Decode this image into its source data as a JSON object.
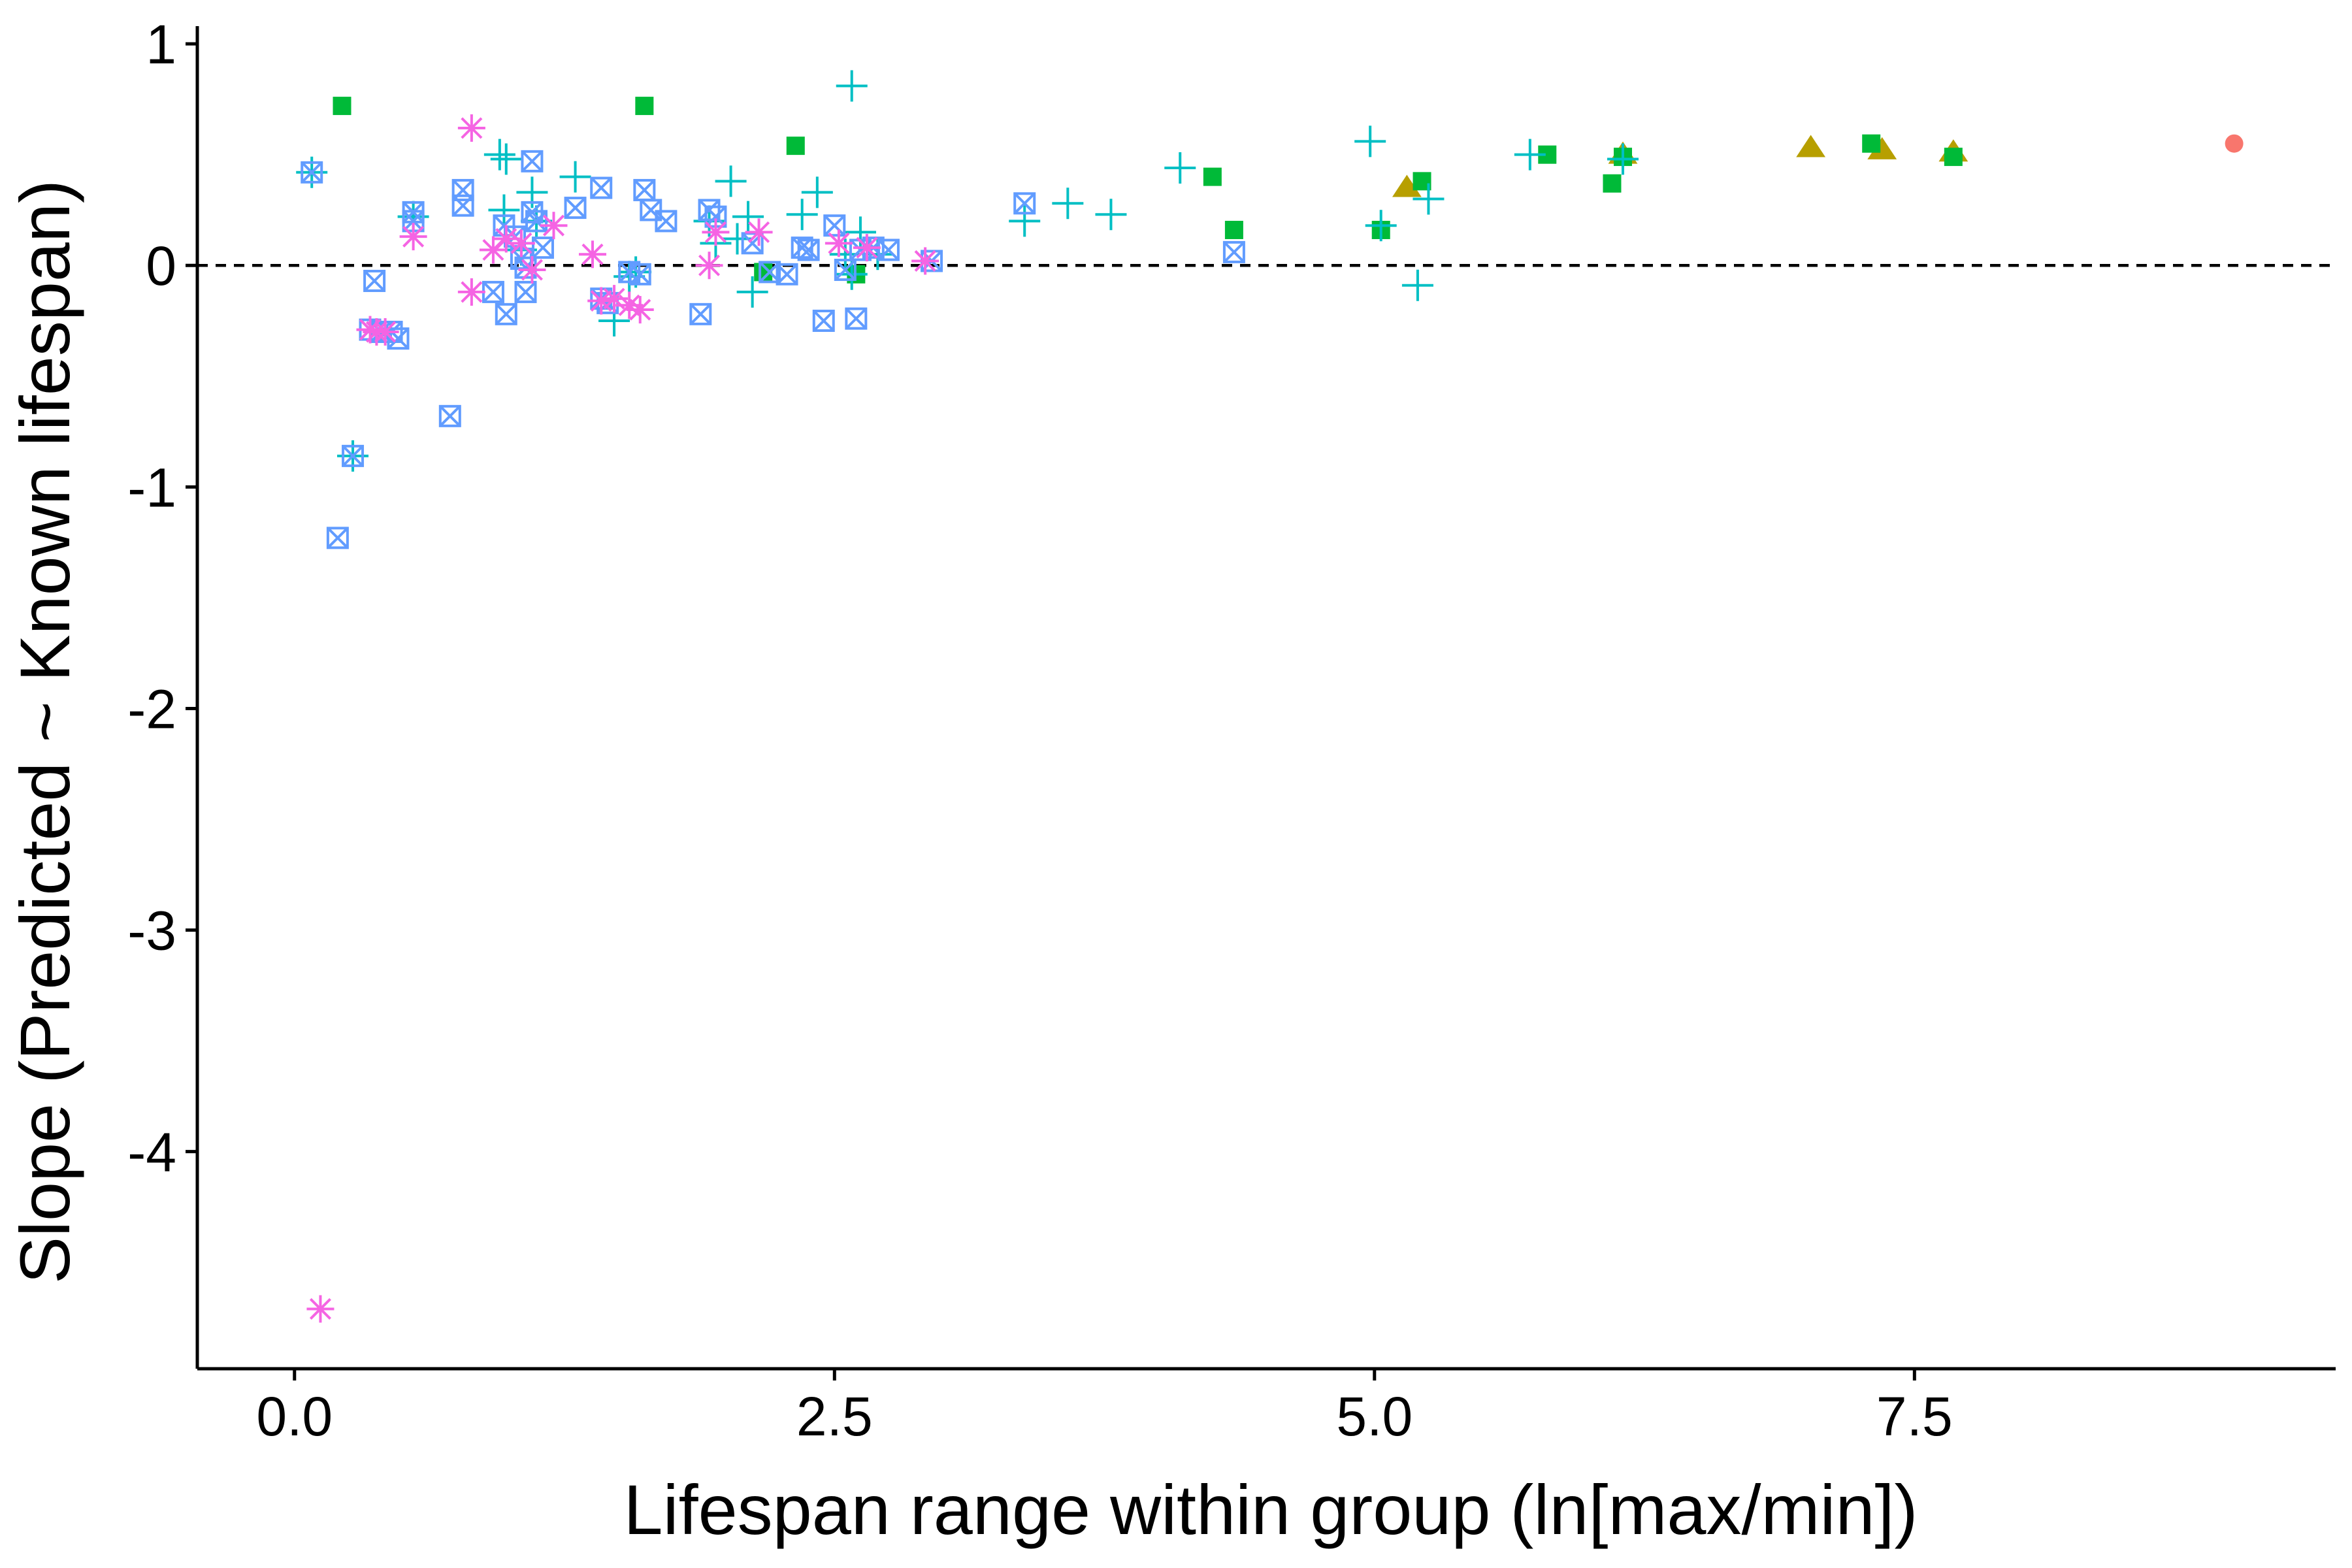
{
  "chart_data": {
    "type": "scatter",
    "title": "",
    "xlabel": "Lifespan range within group (ln[max/min])",
    "ylabel": "Slope (Predicted ~ Known lifespan)",
    "xlim": [
      -0.45,
      9.45
    ],
    "ylim": [
      -4.98,
      1.08
    ],
    "x_ticks": [
      {
        "value": 0.0,
        "label": "0.0"
      },
      {
        "value": 2.5,
        "label": "2.5"
      },
      {
        "value": 5.0,
        "label": "5.0"
      },
      {
        "value": 7.5,
        "label": "7.5"
      }
    ],
    "y_ticks": [
      {
        "value": 1,
        "label": "1"
      },
      {
        "value": 0,
        "label": "0"
      },
      {
        "value": -1,
        "label": "-1"
      },
      {
        "value": -2,
        "label": "-2"
      },
      {
        "value": -3,
        "label": "-3"
      },
      {
        "value": -4,
        "label": "-4"
      }
    ],
    "reference_line": {
      "y": 0,
      "style": "dashed",
      "color": "#000000"
    },
    "grid": false,
    "legend": "none",
    "series": [
      {
        "marker": "circle",
        "color": "#F8766D",
        "points": [
          [
            8.98,
            0.55
          ]
        ]
      },
      {
        "marker": "triangle",
        "color": "#B79F00",
        "points": [
          [
            5.15,
            0.35
          ],
          [
            6.15,
            0.5
          ],
          [
            7.02,
            0.53
          ],
          [
            7.35,
            0.52
          ],
          [
            7.68,
            0.51
          ]
        ]
      },
      {
        "marker": "square",
        "color": "#00BA38",
        "points": [
          [
            0.22,
            0.72
          ],
          [
            1.62,
            0.72
          ],
          [
            2.32,
            0.54
          ],
          [
            2.17,
            -0.03
          ],
          [
            2.6,
            -0.04
          ],
          [
            4.25,
            0.4
          ],
          [
            4.35,
            0.16
          ],
          [
            5.03,
            0.16
          ],
          [
            5.22,
            0.38
          ],
          [
            5.8,
            0.5
          ],
          [
            6.1,
            0.37
          ],
          [
            6.15,
            0.49
          ],
          [
            7.3,
            0.55
          ],
          [
            7.68,
            0.49
          ]
        ]
      },
      {
        "marker": "plus",
        "color": "#00BFC4",
        "points": [
          [
            0.08,
            0.42
          ],
          [
            0.27,
            -0.86
          ],
          [
            0.55,
            0.22
          ],
          [
            0.95,
            0.5
          ],
          [
            0.98,
            0.48
          ],
          [
            0.97,
            0.25
          ],
          [
            1.1,
            0.33
          ],
          [
            1.3,
            0.4
          ],
          [
            1.12,
            0.2
          ],
          [
            1.05,
            0.07
          ],
          [
            1.48,
            -0.25
          ],
          [
            1.55,
            -0.05
          ],
          [
            1.58,
            -0.03
          ],
          [
            1.92,
            0.2
          ],
          [
            2.02,
            0.38
          ],
          [
            2.05,
            0.12
          ],
          [
            2.1,
            0.22
          ],
          [
            2.12,
            -0.12
          ],
          [
            1.95,
            0.1
          ],
          [
            2.35,
            0.23
          ],
          [
            2.42,
            0.33
          ],
          [
            2.58,
            0.81
          ],
          [
            2.62,
            0.15
          ],
          [
            2.55,
            0.05
          ],
          [
            2.7,
            0.05
          ],
          [
            2.58,
            -0.04
          ],
          [
            3.38,
            0.2
          ],
          [
            3.58,
            0.28
          ],
          [
            3.78,
            0.23
          ],
          [
            4.1,
            0.44
          ],
          [
            4.98,
            0.56
          ],
          [
            5.03,
            0.18
          ],
          [
            5.2,
            -0.09
          ],
          [
            5.25,
            0.3
          ],
          [
            5.72,
            0.5
          ],
          [
            6.15,
            0.48
          ]
        ]
      },
      {
        "marker": "boxx",
        "color": "#619CFF",
        "points": [
          [
            0.08,
            0.42
          ],
          [
            0.2,
            -1.23
          ],
          [
            0.27,
            -0.86
          ],
          [
            0.37,
            -0.07
          ],
          [
            0.35,
            -0.29
          ],
          [
            0.4,
            -0.3
          ],
          [
            0.45,
            -0.3
          ],
          [
            0.48,
            -0.33
          ],
          [
            0.55,
            0.24
          ],
          [
            0.55,
            0.2
          ],
          [
            0.72,
            -0.68
          ],
          [
            0.78,
            0.34
          ],
          [
            0.78,
            0.27
          ],
          [
            0.92,
            -0.12
          ],
          [
            0.98,
            -0.22
          ],
          [
            0.97,
            0.18
          ],
          [
            1.02,
            0.13
          ],
          [
            1.05,
            0.03
          ],
          [
            1.07,
            -0.01
          ],
          [
            1.07,
            -0.12
          ],
          [
            1.1,
            0.47
          ],
          [
            1.1,
            0.24
          ],
          [
            1.12,
            0.2
          ],
          [
            1.15,
            0.08
          ],
          [
            1.3,
            0.26
          ],
          [
            1.42,
            0.35
          ],
          [
            1.42,
            -0.15
          ],
          [
            1.45,
            -0.17
          ],
          [
            1.55,
            -0.03
          ],
          [
            1.6,
            -0.04
          ],
          [
            1.62,
            0.34
          ],
          [
            1.65,
            0.25
          ],
          [
            1.72,
            0.2
          ],
          [
            1.88,
            -0.22
          ],
          [
            1.92,
            0.25
          ],
          [
            1.95,
            0.22
          ],
          [
            2.12,
            0.1
          ],
          [
            2.2,
            -0.03
          ],
          [
            2.28,
            -0.04
          ],
          [
            2.35,
            0.08
          ],
          [
            2.38,
            0.07
          ],
          [
            2.45,
            -0.25
          ],
          [
            2.5,
            0.18
          ],
          [
            2.55,
            -0.02
          ],
          [
            2.6,
            -0.24
          ],
          [
            2.62,
            0.07
          ],
          [
            2.68,
            0.08
          ],
          [
            2.75,
            0.07
          ],
          [
            2.95,
            0.02
          ],
          [
            3.38,
            0.28
          ],
          [
            4.35,
            0.06
          ]
        ]
      },
      {
        "marker": "star",
        "color": "#F564E3",
        "points": [
          [
            0.12,
            -4.71
          ],
          [
            0.35,
            -0.29
          ],
          [
            0.38,
            -0.3
          ],
          [
            0.42,
            -0.3
          ],
          [
            0.55,
            0.13
          ],
          [
            0.82,
            0.62
          ],
          [
            0.82,
            -0.12
          ],
          [
            0.92,
            0.07
          ],
          [
            0.98,
            0.12
          ],
          [
            1.05,
            0.1
          ],
          [
            1.1,
            -0.02
          ],
          [
            1.2,
            0.18
          ],
          [
            1.38,
            0.05
          ],
          [
            1.42,
            -0.16
          ],
          [
            1.48,
            -0.15
          ],
          [
            1.55,
            -0.18
          ],
          [
            1.6,
            -0.2
          ],
          [
            1.92,
            0.0
          ],
          [
            1.95,
            0.15
          ],
          [
            2.15,
            0.15
          ],
          [
            2.52,
            0.1
          ],
          [
            2.65,
            0.08
          ],
          [
            2.92,
            0.02
          ]
        ]
      }
    ]
  }
}
